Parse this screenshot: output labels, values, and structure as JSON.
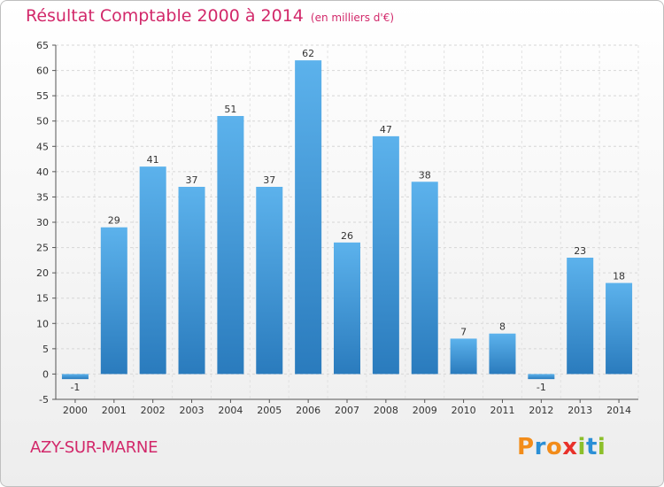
{
  "title": "Résultat Comptable 2000 à 2014",
  "unit": "(en milliers d'€)",
  "location": "AZY-SUR-MARNE",
  "logo": {
    "letters": [
      "P",
      "r",
      "o",
      "x",
      "i",
      "t",
      "i"
    ],
    "colors": [
      "#f28c1a",
      "#2b8fd6",
      "#f28c1a",
      "#e8312a",
      "#8cbf2a",
      "#2b8fd6",
      "#8cbf2a"
    ]
  },
  "chart_data": {
    "type": "bar",
    "title": "Résultat Comptable 2000 à 2014",
    "ylabel": "en milliers d'€",
    "xlabel": "",
    "categories": [
      "2000",
      "2001",
      "2002",
      "2003",
      "2004",
      "2005",
      "2006",
      "2007",
      "2008",
      "2009",
      "2010",
      "2011",
      "2012",
      "2013",
      "2014"
    ],
    "values": [
      -1,
      29,
      41,
      37,
      51,
      37,
      62,
      26,
      47,
      38,
      7,
      8,
      -1,
      23,
      18
    ],
    "ylim": [
      -5,
      65
    ],
    "yticks": [
      -5,
      0,
      5,
      10,
      15,
      20,
      25,
      30,
      35,
      40,
      45,
      50,
      55,
      60,
      65
    ],
    "grid": true,
    "bar_color": "#4ea6e6"
  }
}
